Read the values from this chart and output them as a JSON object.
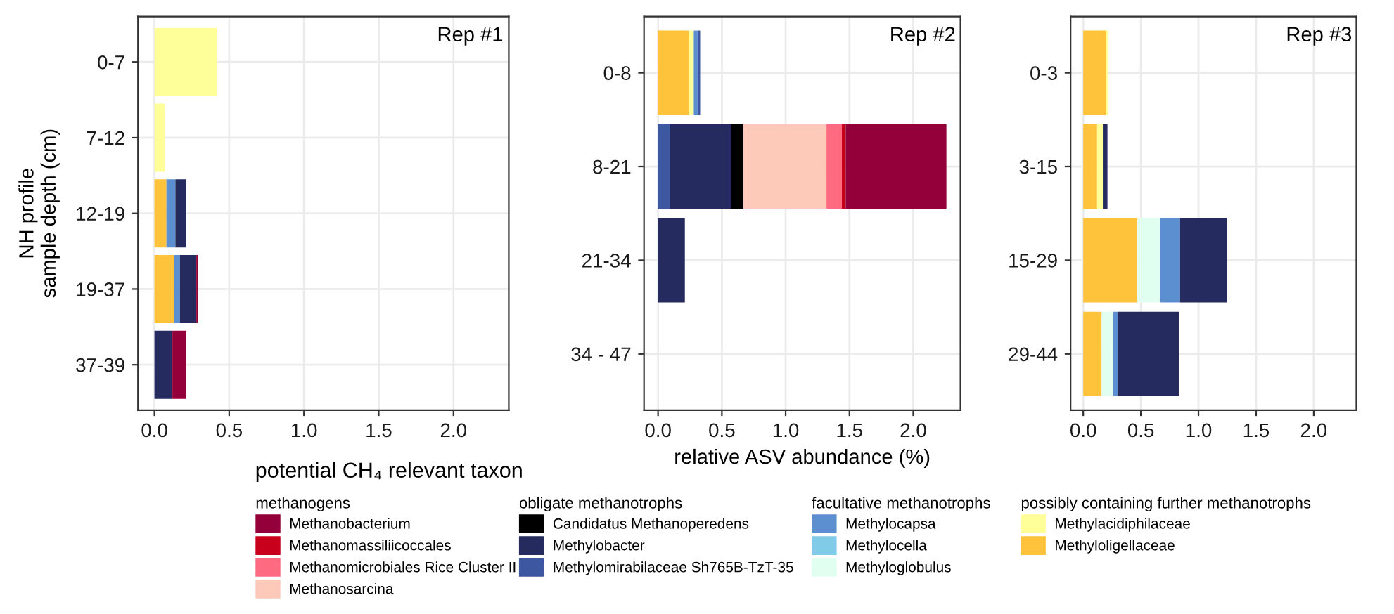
{
  "chart_data": [
    {
      "type": "bar",
      "orientation": "horizontal",
      "stacked": true,
      "title": "Rep #1",
      "ylabel": "NH profile\nsample depth (cm)",
      "legend_title": "potential CH₄ relevant taxon",
      "annotations": [
        "methanogens",
        "obligate methanotrophs",
        "facultative methanotrophs",
        "possibly containing further methanotrophs"
      ],
      "categories": [
        "0-7",
        "7-12",
        "12-19",
        "19-37",
        "37-39"
      ],
      "xlim": [
        -0.11,
        2.37
      ],
      "xticks": [
        {
          "value": 0,
          "label": "0.0"
        },
        {
          "value": 0.5,
          "label": "0.5"
        },
        {
          "value": 1,
          "label": "1.0"
        },
        {
          "value": 1.5,
          "label": "1.5"
        },
        {
          "value": 2,
          "label": "2.0"
        }
      ],
      "grid": true,
      "legend": "bottom",
      "series": [
        {
          "name": "Methyloligellaceae",
          "color": "#fec23b",
          "values": [
            null,
            null,
            0.08,
            0.13,
            null
          ]
        },
        {
          "name": "Methylacidiphilaceae",
          "color": "#ffff99",
          "values": [
            0.42,
            0.07,
            null,
            null,
            null
          ]
        },
        {
          "name": "Methyloglobulus",
          "color": "#e0fff0",
          "values": [
            null,
            null,
            null,
            null,
            null
          ]
        },
        {
          "name": "Methylocella",
          "color": "#80cbe8",
          "values": [
            null,
            null,
            null,
            null,
            null
          ]
        },
        {
          "name": "Methylocapsa",
          "color": "#5b8fcf",
          "values": [
            null,
            null,
            0.06,
            0.04,
            null
          ]
        },
        {
          "name": "Methylomirabilaceae Sh765B-TzT-35",
          "color": "#3d58a0",
          "values": [
            null,
            null,
            null,
            null,
            null
          ]
        },
        {
          "name": "Methylobacter",
          "color": "#252b5e",
          "values": [
            null,
            null,
            0.07,
            0.11,
            0.12
          ]
        },
        {
          "name": "Candidatus Methanoperedens",
          "color": "#000000",
          "values": [
            null,
            null,
            null,
            null,
            null
          ]
        },
        {
          "name": "Methanosarcina",
          "color": "#fdc9b8",
          "values": [
            null,
            null,
            null,
            null,
            null
          ]
        },
        {
          "name": "Methanomicrobiales Rice Cluster II",
          "color": "#fe6b80",
          "values": [
            null,
            null,
            null,
            null,
            null
          ]
        },
        {
          "name": "Methanomassiliicoccales",
          "color": "#c8001c",
          "values": [
            null,
            null,
            null,
            null,
            null
          ]
        },
        {
          "name": "Methanobacterium",
          "color": "#94003a",
          "values": [
            null,
            null,
            null,
            0.01,
            0.09
          ]
        }
      ]
    },
    {
      "type": "bar",
      "orientation": "horizontal",
      "stacked": true,
      "title": "Rep #2",
      "xlabel": "relative ASV abundance (%)",
      "categories": [
        "0-8",
        "8-21",
        "21-34",
        "34 - 47"
      ],
      "xlim": [
        -0.11,
        2.37
      ],
      "xticks": [
        {
          "value": 0,
          "label": "0.0"
        },
        {
          "value": 0.5,
          "label": "0.5"
        },
        {
          "value": 1,
          "label": "1.0"
        },
        {
          "value": 1.5,
          "label": "1.5"
        },
        {
          "value": 2,
          "label": "2.0"
        }
      ],
      "grid": true,
      "series": [
        {
          "color": "#fec23b",
          "values": [
            0.24,
            null,
            null,
            null
          ]
        },
        {
          "color": "#ffff99",
          "values": [
            0.04,
            null,
            null,
            null
          ]
        },
        {
          "color": "#5b8fcf",
          "values": [
            0.03,
            null,
            null,
            null
          ]
        },
        {
          "color": "#3d58a0",
          "values": [
            0.02,
            0.09,
            null,
            null
          ]
        },
        {
          "color": "#252b5e",
          "values": [
            null,
            0.48,
            0.21,
            null
          ]
        },
        {
          "color": "#000000",
          "values": [
            null,
            0.1,
            null,
            null
          ]
        },
        {
          "color": "#fdc9b8",
          "values": [
            null,
            0.65,
            null,
            null
          ]
        },
        {
          "color": "#fe6b80",
          "values": [
            null,
            0.12,
            null,
            null
          ]
        },
        {
          "color": "#c8001c",
          "values": [
            null,
            0.03,
            null,
            null
          ]
        },
        {
          "color": "#94003a",
          "values": [
            null,
            0.79,
            null,
            null
          ]
        }
      ]
    },
    {
      "type": "bar",
      "orientation": "horizontal",
      "stacked": true,
      "title": "Rep #3",
      "categories": [
        "0-3",
        "3-15",
        "15-29",
        "29-44"
      ],
      "xlim": [
        -0.11,
        2.37
      ],
      "xticks": [
        {
          "value": 0,
          "label": "0.0"
        },
        {
          "value": 0.5,
          "label": "0.5"
        },
        {
          "value": 1,
          "label": "1.0"
        },
        {
          "value": 1.5,
          "label": "1.5"
        },
        {
          "value": 2,
          "label": "2.0"
        }
      ],
      "grid": true,
      "series": [
        {
          "color": "#fec23b",
          "values": [
            0.2,
            0.12,
            0.47,
            0.16
          ]
        },
        {
          "color": "#ffff99",
          "values": [
            0.02,
            0.05,
            null,
            null
          ]
        },
        {
          "color": "#e0fff0",
          "values": [
            null,
            null,
            0.2,
            0.1
          ]
        },
        {
          "color": "#5b8fcf",
          "values": [
            null,
            null,
            0.17,
            0.04
          ]
        },
        {
          "color": "#252b5e",
          "values": [
            null,
            0.04,
            0.41,
            0.53
          ]
        }
      ]
    }
  ]
}
